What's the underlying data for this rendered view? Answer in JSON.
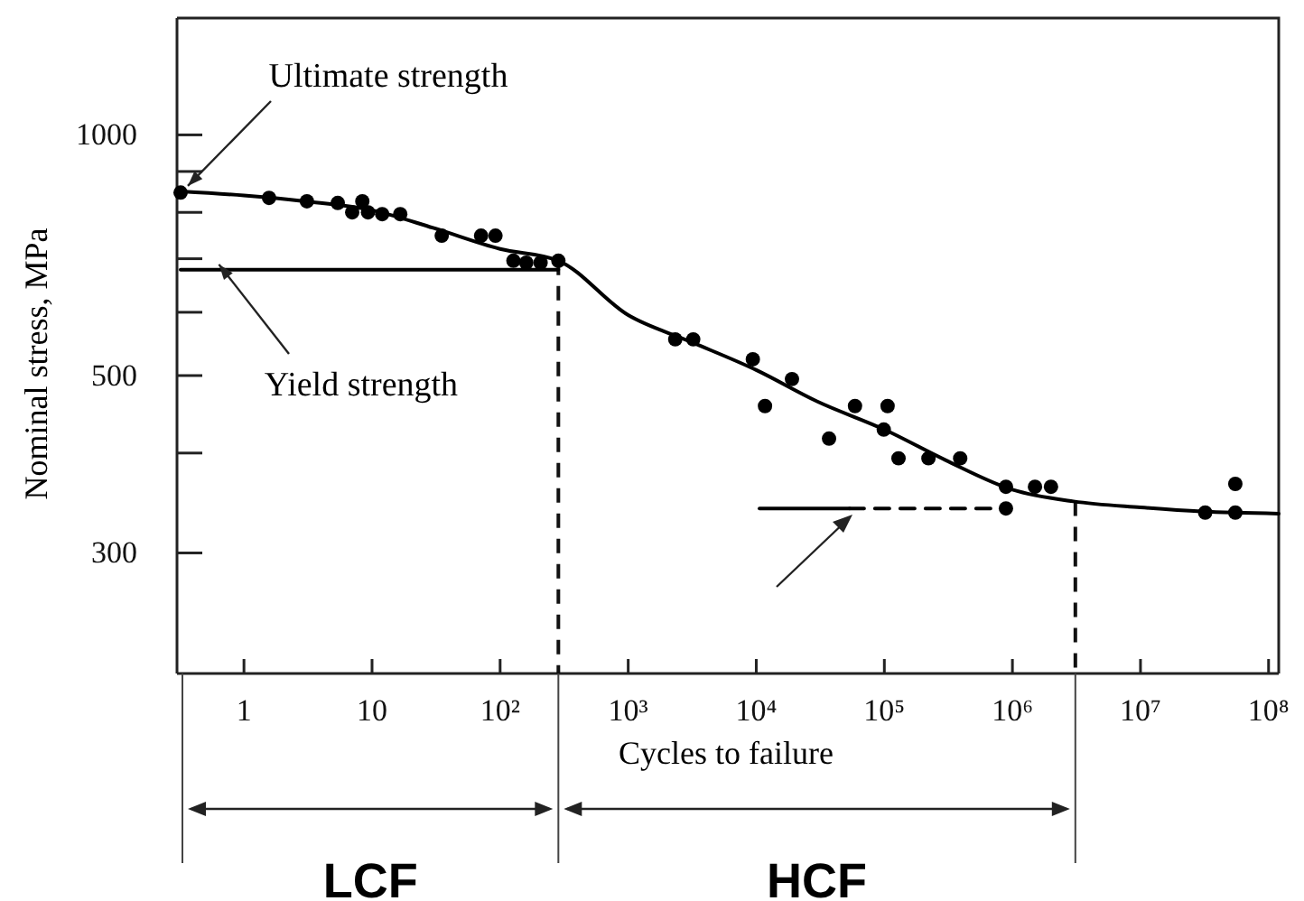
{
  "chart_data": {
    "type": "scatter",
    "xlabel": "Cycles to failure",
    "ylabel": "Nominal stress, MPa",
    "log": "xy",
    "xlim": [
      0.3,
      120000000
    ],
    "ylim": [
      212,
      1400
    ],
    "xticks": [
      1,
      10,
      {
        "value": 100,
        "label": "10²"
      },
      {
        "value": 1000,
        "label": "10³"
      },
      {
        "value": 10000,
        "label": "10⁴"
      },
      {
        "value": 100000,
        "label": "10⁵"
      },
      {
        "value": 1000000,
        "label": "10⁶"
      },
      {
        "value": 10000000,
        "label": "10⁷"
      },
      {
        "value": 100000000,
        "label": "10⁸"
      }
    ],
    "yticks": [
      1000,
      {
        "value": 900,
        "label": null
      },
      {
        "value": 800,
        "label": null
      },
      {
        "value": 700,
        "label": null
      },
      {
        "value": 600,
        "label": null
      },
      500,
      {
        "value": 400,
        "label": null
      },
      300
    ],
    "grid": false,
    "series": [
      {
        "marker": "circle",
        "color": "#000000",
        "x": [
          0.32,
          1.57,
          3.1,
          5.4,
          7.0,
          8.4,
          9.3,
          12,
          16.6,
          35,
          71,
          92,
          127,
          160,
          207,
          285,
          2330,
          3220,
          9400,
          19000,
          11700,
          59000,
          106000,
          37000,
          99000,
          129000,
          221000,
          391000,
          890000,
          1500000,
          2000000,
          890000,
          32000000,
          55000000,
          55000000
        ],
        "values": [
          847,
          834,
          826,
          822,
          800,
          826,
          800,
          796,
          796,
          748,
          748,
          748,
          696,
          692,
          692,
          696,
          555,
          555,
          524,
          495,
          458,
          458,
          458,
          417,
          428,
          394,
          394,
          394,
          363,
          363,
          363,
          341,
          337,
          337,
          366
        ]
      },
      {
        "type": "line",
        "color": "#000000",
        "x": [
          0.32,
          1,
          3,
          10,
          30,
          100,
          285,
          1000,
          3000,
          10000,
          30000,
          100000,
          300000,
          1000000,
          3000000,
          10000000,
          30000000,
          120000000
        ],
        "values": [
          850,
          840,
          826,
          805,
          765,
          720,
          696,
          595,
          552,
          508,
          464,
          428,
          392,
          360,
          348,
          342,
          338,
          336
        ]
      },
      {
        "type": "line",
        "color": "#000000",
        "x": [
          0.32,
          285
        ],
        "values": [
          678,
          678
        ]
      },
      {
        "type": "line",
        "color": "#000000",
        "x": [
          10600,
          53600
        ],
        "values": [
          341,
          341
        ]
      },
      {
        "type": "line",
        "color": "#000000",
        "line_style": "dashed",
        "x": [
          53600,
          890000
        ],
        "values": [
          341,
          341
        ]
      }
    ],
    "ref_lines": [
      {
        "axis": "x",
        "value": 285,
        "line_style": "dashed"
      },
      {
        "axis": "x",
        "value": 3100000,
        "line_style": "dashed"
      }
    ],
    "annotations": [
      {
        "text": "Ultimate strength",
        "x": 0.32,
        "y": 850
      },
      {
        "text": "Yield strength",
        "x": 0.56,
        "y": 678
      },
      "LCF",
      "HCF"
    ]
  }
}
